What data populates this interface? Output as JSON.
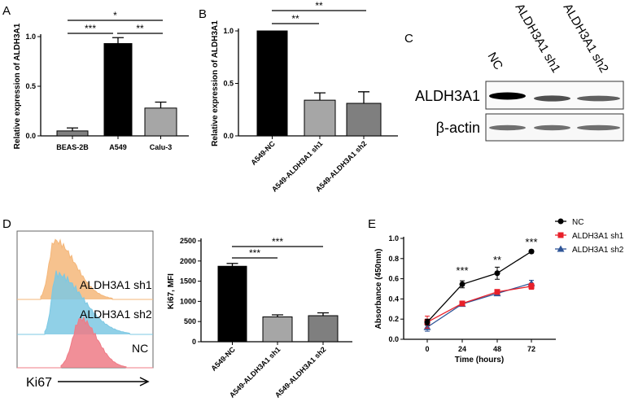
{
  "panel_labels": {
    "a": "A",
    "b": "B",
    "c": "C",
    "d": "D",
    "e": "E"
  },
  "chart_data": [
    {
      "id": "A",
      "type": "bar",
      "ylabel": "Relative expression of ALDH3A1",
      "categories": [
        "BEAS-2B",
        "A549",
        "Calu-3"
      ],
      "values": [
        0.05,
        0.93,
        0.28
      ],
      "errors": [
        0.03,
        0.06,
        0.06
      ],
      "colors": [
        "#808080",
        "#000000",
        "#a6a6a6"
      ],
      "ylim": [
        0,
        1.0
      ],
      "yticks": [
        "0.0",
        "0.5",
        "1.0"
      ],
      "significance": [
        {
          "from": 0,
          "to": 2,
          "label": "*"
        },
        {
          "from": 0,
          "to": 1,
          "label": "***"
        },
        {
          "from": 1,
          "to": 2,
          "label": "**"
        }
      ]
    },
    {
      "id": "B",
      "type": "bar",
      "ylabel": "Relative expression of ALDH3A1",
      "categories": [
        "A549-NC",
        "A549-ALDH3A1 sh1",
        "A549-ALDH3A1 sh2"
      ],
      "values": [
        1.0,
        0.34,
        0.31
      ],
      "errors": [
        0,
        0.07,
        0.11
      ],
      "colors": [
        "#000000",
        "#a6a6a6",
        "#7f7f7f"
      ],
      "ylim": [
        0,
        1.0
      ],
      "yticks": [
        "0.0",
        "0.5",
        "1.0"
      ],
      "significance": [
        {
          "from": 0,
          "to": 2,
          "label": "**"
        },
        {
          "from": 0,
          "to": 1,
          "label": "**"
        }
      ]
    },
    {
      "id": "D",
      "type": "bar",
      "ylabel": "Ki67, MFI",
      "categories": [
        "A549-NC",
        "A549-ALDH3A1 sh1",
        "A549-ALDH3A1 sh2"
      ],
      "values": [
        1870,
        615,
        645
      ],
      "errors": [
        70,
        50,
        70
      ],
      "colors": [
        "#000000",
        "#a6a6a6",
        "#7f7f7f"
      ],
      "ylim": [
        0,
        2500
      ],
      "yticks": [
        "0",
        "500",
        "1000",
        "1500",
        "2000",
        "2500"
      ],
      "significance": [
        {
          "from": 0,
          "to": 2,
          "label": "***"
        },
        {
          "from": 0,
          "to": 1,
          "label": "***"
        }
      ]
    },
    {
      "id": "E",
      "type": "line",
      "xlabel": "Time (hours)",
      "ylabel": "Absorbance (450nm)",
      "x": [
        0,
        24,
        48,
        72
      ],
      "ylim": [
        0,
        1.0
      ],
      "yticks": [
        "0.0",
        "0.2",
        "0.4",
        "0.6",
        "0.8",
        "1.0"
      ],
      "legend_position": "top-right",
      "series": [
        {
          "name": "NC",
          "values": [
            0.17,
            0.545,
            0.655,
            0.87
          ],
          "errors": [
            0.03,
            0.035,
            0.06,
            0.015
          ],
          "color": "#000000",
          "marker": "circle"
        },
        {
          "name": "ALDH3A1 sh1",
          "values": [
            0.17,
            0.355,
            0.47,
            0.525
          ],
          "errors": [
            0.06,
            0.015,
            0.015,
            0.03
          ],
          "color": "#e8202a",
          "marker": "square"
        },
        {
          "name": "ALDH3A1 sh2",
          "values": [
            0.12,
            0.35,
            0.455,
            0.555
          ],
          "errors": [
            0.04,
            0.015,
            0.015,
            0.03
          ],
          "color": "#2f5597",
          "marker": "triangle"
        }
      ],
      "annotations": [
        "",
        "***",
        "**",
        "***"
      ]
    }
  ],
  "western_blot": {
    "lanes": [
      "NC",
      "ALDH3A1 sh1",
      "ALDH3A1 sh2"
    ],
    "rows": [
      {
        "label": "ALDH3A1",
        "intensities": [
          1.0,
          0.55,
          0.45
        ]
      },
      {
        "label": "β-actin",
        "intensities": [
          0.7,
          0.7,
          0.7
        ]
      }
    ]
  },
  "histogram": {
    "tracks": [
      {
        "label": "ALDH3A1 sh1",
        "color": "#f4b77a"
      },
      {
        "label": "ALDH3A1 sh2",
        "color": "#7cc8e3"
      },
      {
        "label": "NC",
        "color": "#ef7b86"
      }
    ],
    "axis_label": "Ki67"
  }
}
